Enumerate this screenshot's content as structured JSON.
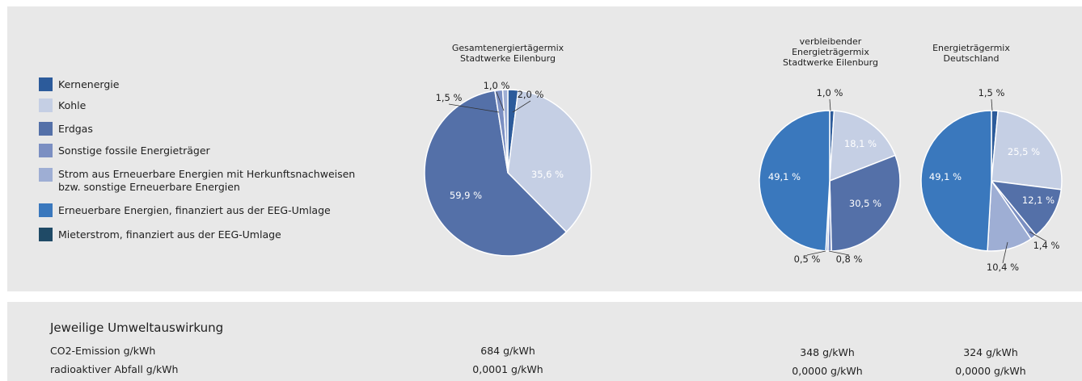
{
  "legend": [
    {
      "label": "Kernenergie",
      "color": "#2c5b9b"
    },
    {
      "label": "Kohle",
      "color": "#c5cfe4"
    },
    {
      "label": "Erdgas",
      "color": "#5470a8"
    },
    {
      "label": "Sonstige fossile Energieträger",
      "color": "#7b8fc2"
    },
    {
      "label": "Strom aus Erneuerbare Energien mit Herkunftsnachweisen",
      "label2": "bzw. sonstige Erneuerbare Energien",
      "color": "#9eaed4"
    },
    {
      "label": "Erneuerbare Energien, finanziert aus der EEG-Umlage",
      "color": "#3a78bd"
    },
    {
      "label": "Mieterstrom, finanziert aus der EEG-Umlage",
      "color": "#1f4a66"
    }
  ],
  "chart_data": [
    {
      "type": "pie",
      "title_lines": [
        "Gesamtenergiertägermix",
        "Stadtwerke Eilenburg"
      ],
      "slices": [
        {
          "category": "Kernenergie",
          "value": 2.0,
          "label": "2,0 %"
        },
        {
          "category": "Kohle",
          "value": 35.6,
          "label": "35,6 %"
        },
        {
          "category": "Erdgas",
          "value": 59.9,
          "label": "59,9 %"
        },
        {
          "category": "Sonstige fossile Energieträger",
          "value": 1.5,
          "label": "1,5 %"
        },
        {
          "category": "Strom aus Erneuerbare Energien mit Herkunftsnachweisen bzw. sonstige Erneuerbare Energien",
          "value": 1.0,
          "label": "1,0 %"
        }
      ]
    },
    {
      "type": "pie",
      "title_lines": [
        "verbleibender",
        "Energieträgermix",
        "Stadtwerke Eilenburg"
      ],
      "slices": [
        {
          "category": "Kernenergie",
          "value": 1.0,
          "label": "1,0 %"
        },
        {
          "category": "Kohle",
          "value": 18.1,
          "label": "18,1 %"
        },
        {
          "category": "Erdgas",
          "value": 30.5,
          "label": "30,5 %"
        },
        {
          "category": "Sonstige fossile Energieträger",
          "value": 0.8,
          "label": "0,8 %"
        },
        {
          "category": "Strom aus Erneuerbare Energien mit Herkunftsnachweisen bzw. sonstige Erneuerbare Energien",
          "value": 0.5,
          "label": "0,5 %"
        },
        {
          "category": "Erneuerbare Energien, finanziert aus der EEG-Umlage",
          "value": 49.1,
          "label": "49,1 %"
        }
      ]
    },
    {
      "type": "pie",
      "title_lines": [
        "Energieträgermix",
        "Deutschland"
      ],
      "slices": [
        {
          "category": "Kernenergie",
          "value": 1.5,
          "label": "1,5 %"
        },
        {
          "category": "Kohle",
          "value": 25.5,
          "label": "25,5 %"
        },
        {
          "category": "Erdgas",
          "value": 12.1,
          "label": "12,1 %"
        },
        {
          "category": "Sonstige fossile Energieträger",
          "value": 1.4,
          "label": "1,4 %"
        },
        {
          "category": "Strom aus Erneuerbare Energien mit Herkunftsnachweisen bzw. sonstige Erneuerbare Energien",
          "value": 10.4,
          "label": "10,4 %"
        },
        {
          "category": "Erneuerbare Energien, finanziert aus der EEG-Umlage",
          "value": 49.1,
          "label": "49,1 %"
        }
      ]
    }
  ],
  "impact": {
    "heading": "Jeweilige Umweltauswirkung",
    "rows": [
      {
        "label": "CO2-Emission g/kWh",
        "values": [
          "684 g/kWh",
          "348 g/kWh",
          "324 g/kWh"
        ]
      },
      {
        "label": "radioaktiver Abfall g/kWh",
        "values": [
          "0,0001 g/kWh",
          "0,0000 g/kWh",
          "0,0000 g/kWh"
        ]
      }
    ]
  }
}
